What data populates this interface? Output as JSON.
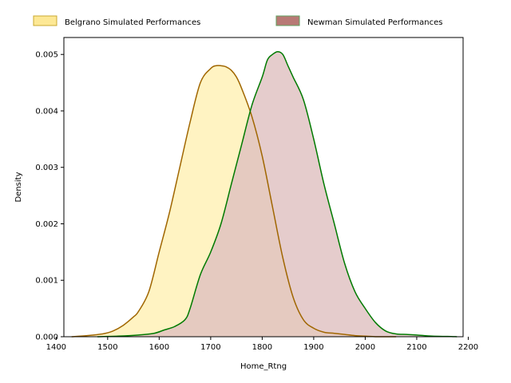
{
  "chart_data": {
    "type": "area",
    "title": "",
    "xlabel": "Home_Rtng",
    "ylabel": "Density",
    "xlim": [
      1415,
      2190
    ],
    "ylim": [
      0,
      0.0053
    ],
    "xticks": [
      1400,
      1500,
      1600,
      1700,
      1800,
      1900,
      2000,
      2100,
      2200
    ],
    "xtick_labels": [
      "1400",
      "1500",
      "1600",
      "1700",
      "1800",
      "1900",
      "2000",
      "2100",
      "2200"
    ],
    "yticks": [
      0,
      0.001,
      0.002,
      0.003,
      0.004,
      0.005
    ],
    "ytick_labels": [
      "0.000",
      "0.001",
      "0.002",
      "0.003",
      "0.004",
      "0.005"
    ],
    "grid": false,
    "legend_position": "top, above plot",
    "series": [
      {
        "name": "Belgrano Simulated Performances",
        "fill_color": "#fff2bf",
        "line_color": "#a06600",
        "x": [
          1430,
          1460,
          1490,
          1510,
          1530,
          1550,
          1560,
          1580,
          1600,
          1620,
          1640,
          1660,
          1680,
          1700,
          1710,
          1720,
          1730,
          1740,
          1750,
          1760,
          1780,
          1800,
          1820,
          1840,
          1860,
          1880,
          1900,
          1920,
          1940,
          1960,
          1980,
          2000,
          2020,
          2040,
          2060
        ],
        "y": [
          0,
          2e-05,
          5e-05,
          0.0001,
          0.0002,
          0.00035,
          0.00045,
          0.0008,
          0.0015,
          0.0022,
          0.003,
          0.0038,
          0.0045,
          0.00475,
          0.0048,
          0.0048,
          0.00478,
          0.00472,
          0.0046,
          0.0044,
          0.0039,
          0.0032,
          0.0023,
          0.0014,
          0.0007,
          0.0003,
          0.00015,
          8e-05,
          6e-05,
          4e-05,
          2e-05,
          1e-05,
          0,
          0,
          0
        ]
      },
      {
        "name": "Newman Simulated Performances",
        "fill_color": "#dfbfbf",
        "line_color": "#007a00",
        "x": [
          1480,
          1520,
          1560,
          1590,
          1610,
          1630,
          1650,
          1660,
          1680,
          1700,
          1720,
          1740,
          1760,
          1780,
          1800,
          1810,
          1820,
          1830,
          1840,
          1850,
          1860,
          1880,
          1900,
          1920,
          1940,
          1960,
          1980,
          2000,
          2020,
          2040,
          2060,
          2080,
          2100,
          2130,
          2160,
          2178
        ],
        "y": [
          0,
          1e-05,
          3e-05,
          6e-05,
          0.00012,
          0.00018,
          0.0003,
          0.0005,
          0.0011,
          0.0015,
          0.002,
          0.0027,
          0.0034,
          0.0041,
          0.0046,
          0.0049,
          0.005,
          0.00505,
          0.005,
          0.0048,
          0.0046,
          0.0042,
          0.0035,
          0.0027,
          0.002,
          0.0013,
          0.0008,
          0.0005,
          0.00025,
          0.0001,
          5e-05,
          4e-05,
          3e-05,
          1e-05,
          5e-06,
          0
        ]
      }
    ]
  }
}
